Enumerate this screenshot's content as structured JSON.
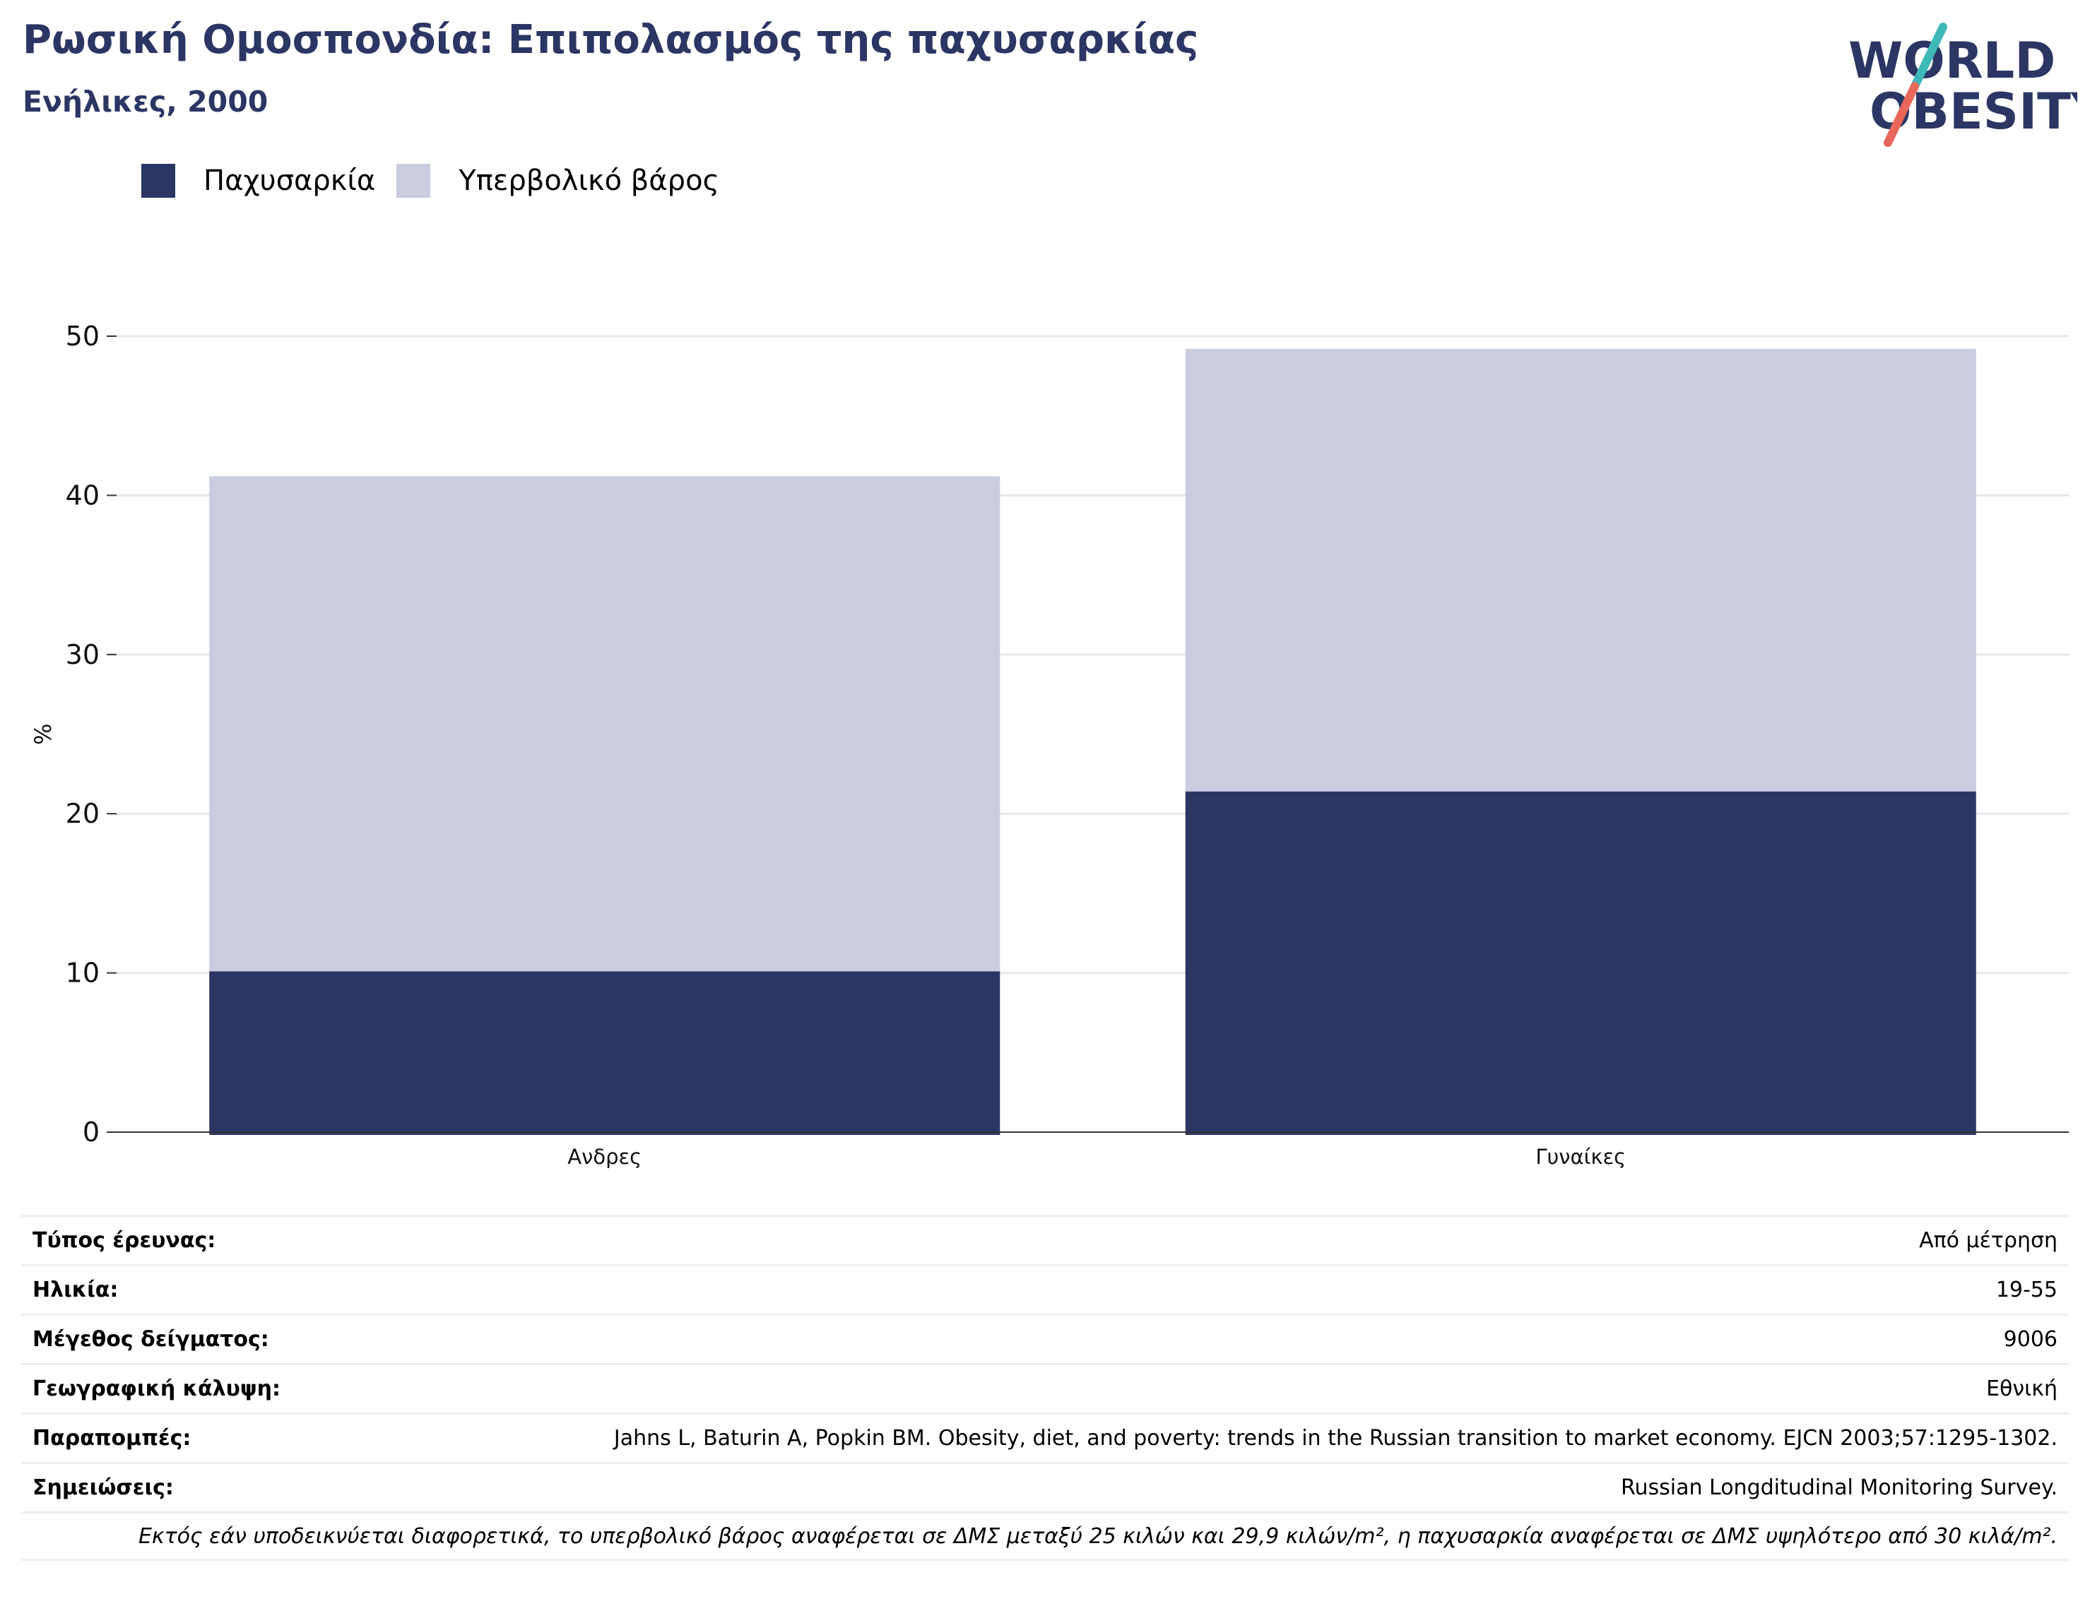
{
  "header": {
    "title": "Ρωσική Ομοσπονδία: Επιπολασμός της παχυσαρκίας",
    "subtitle": "Ενήλικες, 2000"
  },
  "logo": {
    "line1": "WORLD",
    "line2": "OBESITY"
  },
  "colors": {
    "obesity": "#2b3664",
    "overweight": "#cacce0",
    "title": "#2b3664",
    "grid": "#e6e7ec",
    "logo_slash_top": "#3fb8b9",
    "logo_slash_bottom": "#e8675a"
  },
  "legend": {
    "items": [
      {
        "label": "Παχυσαρκία",
        "color": "#2b3664"
      },
      {
        "label": "Υπερβολικό βάρος",
        "color": "#cacce0"
      }
    ]
  },
  "chart_data": {
    "type": "bar",
    "stacked": true,
    "categories": [
      "Ανδρες",
      "Γυναίκες"
    ],
    "series": [
      {
        "name": "Παχυσαρκία",
        "values": [
          10.1,
          21.4
        ]
      },
      {
        "name": "Υπερβολικό βάρος",
        "values": [
          31.1,
          27.8
        ]
      }
    ],
    "ylabel": "%",
    "ylim": [
      0,
      50
    ],
    "yticks": [
      "0",
      "10",
      "20",
      "30",
      "40",
      "50"
    ],
    "grid": true,
    "legend_position": "top-left"
  },
  "info": {
    "rows": [
      {
        "label": "Τύπος έρευνας:",
        "value": "Από μέτρηση"
      },
      {
        "label": "Ηλικία:",
        "value": "19-55"
      },
      {
        "label": "Μέγεθος δείγματος:",
        "value": "9006"
      },
      {
        "label": "Γεωγραφική κάλυψη:",
        "value": "Εθνική"
      },
      {
        "label": "Παραπομπές:",
        "value": "Jahns L, Baturin A, Popkin BM. Obesity, diet, and poverty: trends in the Russian transition to market economy. EJCN 2003;57:1295-1302."
      },
      {
        "label": "Σημειώσεις:",
        "value": "Russian Longditudinal Monitoring Survey."
      }
    ],
    "note": "Εκτός εάν υποδεικνύεται διαφορετικά, το υπερβολικό βάρος αναφέρεται σε ΔΜΣ μεταξύ 25 κιλών και 29,9 κιλών/m², η παχυσαρκία αναφέρεται σε ΔΜΣ υψηλότερο από 30 κιλά/m²."
  }
}
